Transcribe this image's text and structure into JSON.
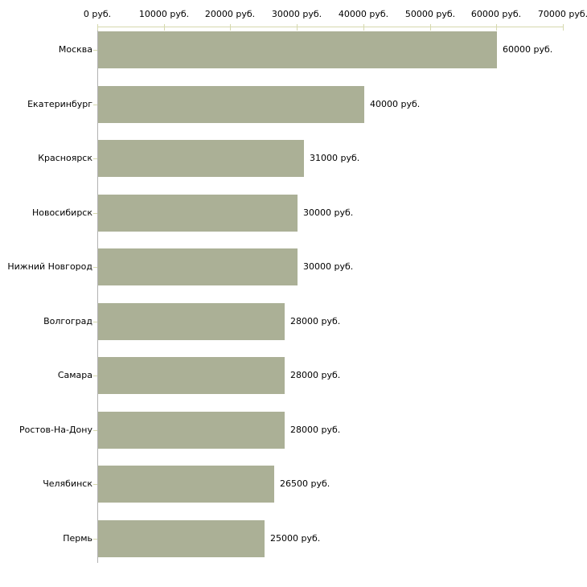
{
  "chart_data": {
    "type": "bar",
    "orientation": "horizontal",
    "title": "",
    "xlabel": "",
    "ylabel": "",
    "grid": false,
    "legend": false,
    "categories": [
      "Москва",
      "Екатеринбург",
      "Красноярск",
      "Новосибирск",
      "Нижний Новгород",
      "Волгоград",
      "Самара",
      "Ростов-На-Дону",
      "Челябинск",
      "Пермь"
    ],
    "values": [
      60000,
      40000,
      31000,
      30000,
      30000,
      28000,
      28000,
      28000,
      26500,
      25000
    ],
    "value_labels": [
      "60000 руб.",
      "40000 руб.",
      "31000 руб.",
      "30000 руб.",
      "30000 руб.",
      "28000 руб.",
      "28000 руб.",
      "28000 руб.",
      "26500 руб.",
      "25000 руб."
    ],
    "x_axis": {
      "position": "top",
      "min": 0,
      "max": 70000,
      "ticks": [
        0,
        10000,
        20000,
        30000,
        40000,
        50000,
        60000,
        70000
      ],
      "tick_labels": [
        "0 руб.",
        "10000 руб.",
        "20000 руб.",
        "30000 руб.",
        "40000 руб.",
        "50000 руб.",
        "60000 руб.",
        "70000 руб."
      ]
    },
    "colors": {
      "bar": "#abb096",
      "x_axis_line": "#d6d9ae",
      "y_axis_line": "#b2b2b2",
      "text": "#000000",
      "background": "#ffffff"
    }
  }
}
